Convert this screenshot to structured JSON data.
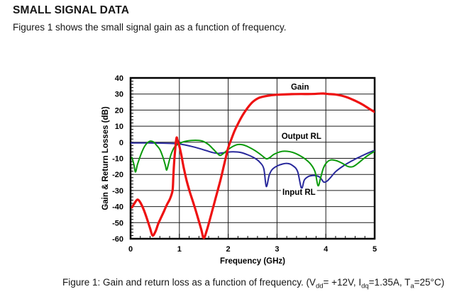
{
  "page": {
    "title": "SMALL SIGNAL DATA",
    "intro": "Figures 1 shows the small signal gain as a function of frequency."
  },
  "figure": {
    "caption_parts": [
      {
        "t": "Figure 1: Gain and return loss as a function of frequency. (V"
      },
      {
        "t": "dd",
        "sub": true
      },
      {
        "t": "= +12V, I"
      },
      {
        "t": "dq",
        "sub": true
      },
      {
        "t": "=1.35A, T"
      },
      {
        "t": "a",
        "sub": true
      },
      {
        "t": "=25°C)"
      }
    ]
  },
  "chart_data": {
    "type": "line",
    "title": "",
    "xlabel": "Frequency (GHz)",
    "ylabel": "Gain & Return Losses (dB)",
    "xlim": [
      0,
      5
    ],
    "ylim": [
      -60,
      40
    ],
    "x_ticks": [
      0,
      1,
      2,
      3,
      4,
      5
    ],
    "y_ticks": [
      40,
      30,
      20,
      10,
      0,
      -10,
      -20,
      -30,
      -40,
      -50,
      -60
    ],
    "x_minor_step": 0.2,
    "y_minor_step": 2,
    "grid": true,
    "legend_position": "none",
    "frame_color": "#000000",
    "grid_color": "#1c1c1c",
    "series": [
      {
        "name": "Gain",
        "color": "#ee1111",
        "width": 3.2,
        "points": [
          [
            0.03,
            -40.5
          ],
          [
            0.08,
            -38
          ],
          [
            0.14,
            -35.7
          ],
          [
            0.2,
            -37.5
          ],
          [
            0.27,
            -42
          ],
          [
            0.33,
            -47
          ],
          [
            0.4,
            -53.5
          ],
          [
            0.45,
            -58
          ],
          [
            0.51,
            -55.5
          ],
          [
            0.57,
            -50.5
          ],
          [
            0.63,
            -46.5
          ],
          [
            0.69,
            -42.5
          ],
          [
            0.75,
            -38.5
          ],
          [
            0.81,
            -35
          ],
          [
            0.86,
            -30
          ],
          [
            0.875,
            -22
          ],
          [
            0.89,
            -14
          ],
          [
            0.91,
            -6
          ],
          [
            0.93,
            0.5
          ],
          [
            0.945,
            3
          ],
          [
            0.96,
            1.5
          ],
          [
            0.98,
            -0.5
          ],
          [
            1.0,
            -2.5
          ],
          [
            1.04,
            -8
          ],
          [
            1.09,
            -16
          ],
          [
            1.15,
            -24
          ],
          [
            1.22,
            -31.5
          ],
          [
            1.3,
            -39
          ],
          [
            1.38,
            -47
          ],
          [
            1.45,
            -54.5
          ],
          [
            1.5,
            -59.5
          ],
          [
            1.56,
            -55
          ],
          [
            1.63,
            -47.5
          ],
          [
            1.7,
            -39.5
          ],
          [
            1.78,
            -30.5
          ],
          [
            1.85,
            -22.5
          ],
          [
            1.92,
            -13.5
          ],
          [
            2.0,
            -3.5
          ],
          [
            2.06,
            1.5
          ],
          [
            2.13,
            7
          ],
          [
            2.2,
            11.5
          ],
          [
            2.3,
            17
          ],
          [
            2.4,
            21.5
          ],
          [
            2.5,
            25
          ],
          [
            2.62,
            27.5
          ],
          [
            2.75,
            28.6
          ],
          [
            2.9,
            29.3
          ],
          [
            3.1,
            29.7
          ],
          [
            3.3,
            29.9
          ],
          [
            3.5,
            30
          ],
          [
            3.7,
            30
          ],
          [
            3.85,
            30.2
          ],
          [
            3.95,
            30.3
          ],
          [
            4.05,
            30
          ],
          [
            4.2,
            29.7
          ],
          [
            4.32,
            29
          ],
          [
            4.45,
            27.8
          ],
          [
            4.6,
            25.8
          ],
          [
            4.75,
            23.5
          ],
          [
            4.88,
            21
          ],
          [
            5.0,
            18.8
          ]
        ]
      },
      {
        "name": "Output RL",
        "color": "#0a9a0a",
        "width": 2,
        "points": [
          [
            0.03,
            -9.5
          ],
          [
            0.07,
            -14
          ],
          [
            0.1,
            -18.5
          ],
          [
            0.14,
            -14
          ],
          [
            0.2,
            -8.5
          ],
          [
            0.27,
            -3.5
          ],
          [
            0.33,
            -0.8
          ],
          [
            0.4,
            0.7
          ],
          [
            0.47,
            0.2
          ],
          [
            0.53,
            -1.8
          ],
          [
            0.6,
            -4.5
          ],
          [
            0.66,
            -9
          ],
          [
            0.71,
            -14
          ],
          [
            0.74,
            -17.3
          ],
          [
            0.78,
            -13
          ],
          [
            0.83,
            -7.5
          ],
          [
            0.9,
            -3
          ],
          [
            1.0,
            -0.8
          ],
          [
            1.1,
            0.4
          ],
          [
            1.25,
            1.1
          ],
          [
            1.4,
            1.1
          ],
          [
            1.5,
            0.4
          ],
          [
            1.6,
            -1.5
          ],
          [
            1.7,
            -4.5
          ],
          [
            1.78,
            -7
          ],
          [
            1.84,
            -8.2
          ],
          [
            1.92,
            -6.5
          ],
          [
            2.0,
            -4.5
          ],
          [
            2.1,
            -2.5
          ],
          [
            2.2,
            -1.4
          ],
          [
            2.3,
            -1.6
          ],
          [
            2.42,
            -3
          ],
          [
            2.55,
            -5.2
          ],
          [
            2.68,
            -8
          ],
          [
            2.78,
            -10.3
          ],
          [
            2.85,
            -9.5
          ],
          [
            2.95,
            -7.3
          ],
          [
            3.1,
            -5.7
          ],
          [
            3.2,
            -5.6
          ],
          [
            3.32,
            -6.3
          ],
          [
            3.45,
            -8
          ],
          [
            3.58,
            -10.5
          ],
          [
            3.7,
            -14
          ],
          [
            3.78,
            -18.5
          ],
          [
            3.84,
            -27
          ],
          [
            3.89,
            -22.5
          ],
          [
            3.95,
            -16
          ],
          [
            4.02,
            -12.5
          ],
          [
            4.1,
            -11
          ],
          [
            4.2,
            -11.3
          ],
          [
            4.32,
            -12.8
          ],
          [
            4.45,
            -15
          ],
          [
            4.55,
            -15.2
          ],
          [
            4.65,
            -13.3
          ],
          [
            4.75,
            -10.8
          ],
          [
            4.87,
            -8
          ],
          [
            5.0,
            -5.6
          ]
        ]
      },
      {
        "name": "Input RL",
        "color": "#28289b",
        "width": 2,
        "points": [
          [
            0.0,
            -0.4
          ],
          [
            0.25,
            -0.4
          ],
          [
            0.5,
            -0.5
          ],
          [
            0.75,
            -0.6
          ],
          [
            0.95,
            -0.9
          ],
          [
            1.1,
            -1.6
          ],
          [
            1.25,
            -2.6
          ],
          [
            1.4,
            -3.8
          ],
          [
            1.55,
            -5.2
          ],
          [
            1.68,
            -6.4
          ],
          [
            1.8,
            -6.9
          ],
          [
            1.95,
            -6.3
          ],
          [
            2.1,
            -5.9
          ],
          [
            2.25,
            -6.3
          ],
          [
            2.4,
            -7.8
          ],
          [
            2.55,
            -10
          ],
          [
            2.65,
            -12.5
          ],
          [
            2.73,
            -16.5
          ],
          [
            2.78,
            -27.5
          ],
          [
            2.84,
            -20.5
          ],
          [
            2.9,
            -17
          ],
          [
            3.0,
            -14.8
          ],
          [
            3.12,
            -13.5
          ],
          [
            3.22,
            -13.2
          ],
          [
            3.32,
            -14.5
          ],
          [
            3.42,
            -18
          ],
          [
            3.5,
            -28.5
          ],
          [
            3.56,
            -23.5
          ],
          [
            3.64,
            -21.3
          ],
          [
            3.72,
            -20.7
          ],
          [
            3.8,
            -20.8
          ],
          [
            3.88,
            -21.8
          ],
          [
            3.96,
            -24.8
          ],
          [
            4.03,
            -24
          ],
          [
            4.1,
            -21.8
          ],
          [
            4.2,
            -18.3
          ],
          [
            4.32,
            -15.5
          ],
          [
            4.45,
            -13
          ],
          [
            4.6,
            -10.5
          ],
          [
            4.75,
            -8.3
          ],
          [
            4.88,
            -6.5
          ],
          [
            5.0,
            -5.0
          ]
        ]
      }
    ],
    "annotations": [
      {
        "text": "Gain",
        "x": 3.47,
        "y": 34.6
      },
      {
        "text": "Output RL",
        "x": 3.5,
        "y": 3.8
      },
      {
        "text": "Input RL",
        "x": 3.45,
        "y": -31
      }
    ]
  }
}
